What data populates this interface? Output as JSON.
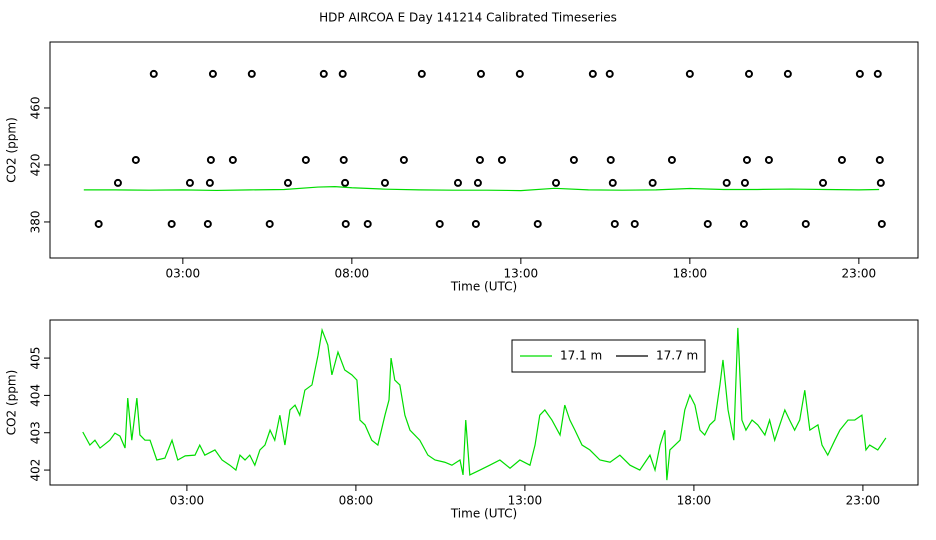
{
  "title": "HDP AIRCOA E  Day 141214  Calibrated Timeseries",
  "chart_data": [
    {
      "type": "scatter",
      "xlabel": "Time (UTC)",
      "ylabel": "CO2 (ppm)",
      "xlim": [
        -0.93,
        24.75
      ],
      "ylim": [
        354.7,
        506.3
      ],
      "xticks": [
        {
          "value": 3,
          "label": "03:00"
        },
        {
          "value": 8,
          "label": "08:00"
        },
        {
          "value": 13,
          "label": "13:00"
        },
        {
          "value": 18,
          "label": "18:00"
        },
        {
          "value": 23,
          "label": "23:00"
        }
      ],
      "yticks": [
        380,
        420,
        460
      ],
      "series": [
        {
          "style": "points",
          "color": "#000000",
          "x": [
            2.14,
            3.89,
            5.04,
            7.17,
            7.73,
            10.07,
            11.82,
            12.97,
            15.13,
            15.63,
            18.0,
            19.75,
            20.9,
            23.03,
            23.56,
            1.61,
            3.83,
            4.48,
            6.64,
            7.76,
            9.54,
            11.79,
            12.44,
            14.57,
            15.66,
            17.47,
            19.69,
            20.34,
            22.5,
            23.62,
            1.08,
            3.21,
            3.8,
            6.11,
            7.8,
            8.98,
            11.14,
            11.73,
            14.04,
            15.72,
            16.9,
            19.09,
            19.63,
            21.94,
            23.65,
            0.51,
            2.67,
            3.74,
            5.57,
            7.82,
            8.47,
            10.6,
            11.67,
            13.5,
            15.78,
            16.37,
            18.53,
            19.6,
            21.43,
            23.68
          ],
          "values": [
            483.9,
            483.9,
            483.9,
            483.9,
            483.9,
            483.9,
            483.9,
            483.9,
            483.9,
            483.9,
            483.9,
            483.9,
            483.9,
            483.9,
            483.9,
            423.5,
            423.5,
            423.5,
            423.5,
            423.5,
            423.5,
            423.5,
            423.5,
            423.5,
            423.5,
            423.5,
            423.5,
            423.5,
            423.5,
            423.5,
            407.4,
            407.4,
            407.4,
            407.4,
            407.4,
            407.4,
            407.4,
            407.4,
            407.4,
            407.4,
            407.4,
            407.4,
            407.4,
            407.4,
            407.4,
            378.6,
            378.6,
            378.6,
            378.6,
            378.6,
            378.6,
            378.6,
            378.6,
            378.6,
            378.6,
            378.6,
            378.6,
            378.6,
            378.6,
            378.6
          ]
        },
        {
          "style": "line",
          "color": "#00dd00",
          "x": [
            0.07,
            1,
            2,
            3,
            4,
            5,
            6,
            7,
            7.5,
            8,
            9,
            10,
            11,
            12,
            13,
            14,
            15,
            16,
            17,
            18,
            19,
            20,
            21,
            22,
            23,
            23.6
          ],
          "values": [
            402.5,
            402.5,
            402.3,
            402.5,
            402.1,
            402.5,
            402.8,
            404.5,
            404.8,
            404.0,
            403.0,
            402.5,
            402.3,
            402.3,
            402.0,
            403.6,
            402.5,
            402.3,
            402.5,
            403.5,
            402.8,
            402.8,
            403.1,
            402.8,
            402.5,
            402.8
          ]
        }
      ]
    },
    {
      "type": "line",
      "xlabel": "Time (UTC)",
      "ylabel": "CO2 (ppm)",
      "xlim": [
        -1.05,
        24.63
      ],
      "ylim": [
        401.6,
        406.02
      ],
      "xticks": [
        {
          "value": 3,
          "label": "03:00"
        },
        {
          "value": 8,
          "label": "08:00"
        },
        {
          "value": 13,
          "label": "13:00"
        },
        {
          "value": 18,
          "label": "18:00"
        },
        {
          "value": 23,
          "label": "23:00"
        }
      ],
      "yticks": [
        402,
        403,
        404,
        405
      ],
      "legend": "top-right",
      "series": [
        {
          "name": "17.1 m",
          "color": "#00dd00",
          "x": [
            -0.08,
            0.13,
            0.28,
            0.43,
            0.72,
            0.87,
            1.02,
            1.17,
            1.25,
            1.37,
            1.52,
            1.61,
            1.76,
            1.91,
            2.11,
            2.35,
            2.56,
            2.73,
            2.95,
            3.24,
            3.38,
            3.53,
            3.83,
            4.04,
            4.27,
            4.45,
            4.57,
            4.72,
            4.86,
            5.01,
            5.16,
            5.31,
            5.46,
            5.6,
            5.75,
            5.9,
            6.05,
            6.2,
            6.34,
            6.49,
            6.7,
            6.88,
            7.0,
            7.17,
            7.29,
            7.47,
            7.67,
            7.88,
            8.03,
            8.12,
            8.27,
            8.47,
            8.65,
            8.86,
            8.98,
            9.04,
            9.15,
            9.3,
            9.45,
            9.6,
            9.89,
            10.13,
            10.34,
            10.63,
            10.84,
            11.08,
            11.17,
            11.25,
            11.37,
            11.67,
            11.96,
            12.26,
            12.56,
            12.85,
            13.15,
            13.3,
            13.44,
            13.59,
            13.8,
            14.04,
            14.18,
            14.33,
            14.48,
            14.69,
            14.92,
            15.22,
            15.52,
            15.81,
            16.11,
            16.4,
            16.7,
            16.85,
            17.0,
            17.14,
            17.2,
            17.29,
            17.59,
            17.73,
            17.88,
            18.03,
            18.18,
            18.32,
            18.47,
            18.62,
            18.77,
            18.86,
            19.01,
            19.18,
            19.3,
            19.42,
            19.54,
            19.72,
            19.89,
            20.1,
            20.24,
            20.39,
            20.54,
            20.69,
            20.83,
            20.98,
            21.13,
            21.28,
            21.43,
            21.67,
            21.79,
            21.96,
            22.17,
            22.32,
            22.56,
            22.76,
            22.97,
            23.09,
            23.2,
            23.44,
            23.68
          ],
          "values": [
            403.02,
            402.67,
            402.8,
            402.59,
            402.8,
            402.99,
            402.91,
            402.59,
            403.93,
            402.8,
            403.93,
            402.94,
            402.8,
            402.8,
            402.27,
            402.32,
            402.8,
            402.27,
            402.38,
            402.4,
            402.67,
            402.4,
            402.54,
            402.27,
            402.13,
            402.0,
            402.4,
            402.27,
            402.4,
            402.13,
            402.54,
            402.67,
            403.07,
            402.8,
            403.47,
            402.67,
            403.61,
            403.74,
            403.47,
            404.14,
            404.28,
            405.08,
            405.75,
            405.35,
            404.55,
            405.16,
            404.68,
            404.55,
            404.41,
            403.34,
            403.21,
            402.8,
            402.67,
            403.47,
            403.88,
            405.0,
            404.41,
            404.28,
            403.47,
            403.07,
            402.8,
            402.4,
            402.27,
            402.21,
            402.13,
            402.27,
            401.87,
            403.34,
            401.87,
            402.0,
            402.13,
            402.27,
            402.05,
            402.27,
            402.13,
            402.67,
            403.47,
            403.61,
            403.34,
            402.94,
            403.74,
            403.34,
            403.07,
            402.67,
            402.54,
            402.27,
            402.21,
            402.4,
            402.13,
            402.0,
            402.4,
            402.0,
            402.67,
            403.07,
            401.73,
            402.54,
            402.8,
            403.61,
            404.01,
            403.74,
            403.07,
            402.94,
            403.21,
            403.34,
            404.28,
            404.95,
            403.61,
            402.8,
            405.81,
            403.34,
            403.07,
            403.34,
            403.21,
            402.94,
            403.34,
            402.8,
            403.21,
            403.61,
            403.34,
            403.07,
            403.34,
            404.14,
            403.07,
            403.21,
            402.67,
            402.4,
            402.8,
            403.07,
            403.34,
            403.34,
            403.47,
            402.54,
            402.67,
            402.54,
            402.86
          ]
        },
        {
          "name": "17.7 m",
          "color": "#000000",
          "x": [],
          "values": []
        }
      ]
    }
  ]
}
